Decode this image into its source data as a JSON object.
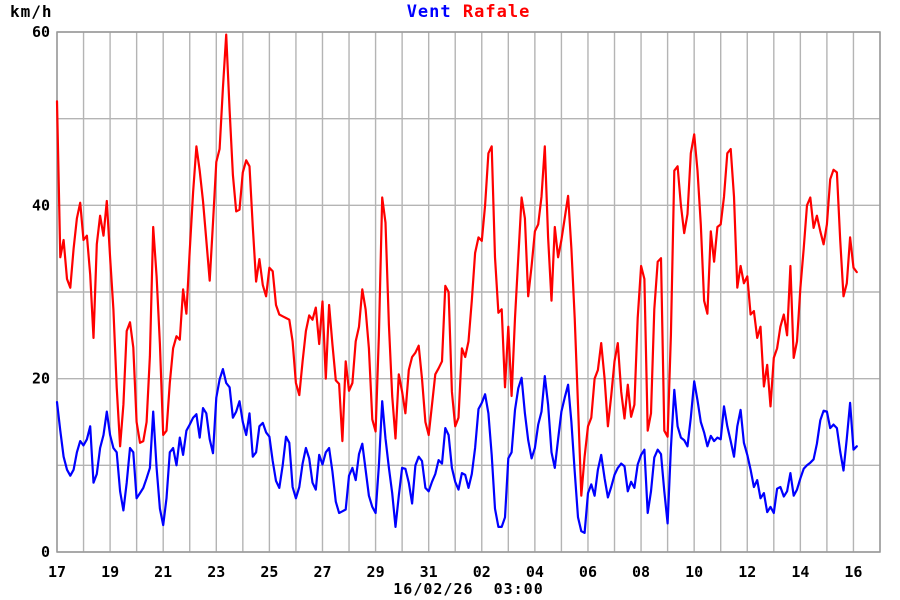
{
  "footer": {
    "timestamp": "16/02/26  03:00"
  },
  "chart_data": {
    "type": "line",
    "title": "Vent Rafale",
    "ylabel": "km/h",
    "xlabel": "",
    "ylim": [
      0,
      60
    ],
    "y_labeled_ticks": [
      0,
      20,
      40,
      60
    ],
    "y_grid_step": 10,
    "grid": true,
    "legend_position": "top-center",
    "x_axis": {
      "start_day": 17,
      "total_days": 31,
      "step_days": 0.125,
      "data_end_day": 47.125,
      "tick_labels": [
        "17",
        "19",
        "21",
        "23",
        "25",
        "27",
        "29",
        "31",
        "02",
        "04",
        "06",
        "08",
        "10",
        "12",
        "14",
        "16"
      ],
      "tick_spacing_days": 2
    },
    "grid_color": "#b4b4b4",
    "border_color": "#999999",
    "series": [
      {
        "name": "Vent",
        "color": "#0000ff",
        "values": [
          17.3,
          14,
          11,
          9.5,
          8.8,
          9.5,
          11.5,
          12.8,
          12.3,
          13,
          14.5,
          8,
          9,
          12,
          13.5,
          16.2,
          13.5,
          12,
          11.5,
          7,
          4.8,
          8,
          12,
          11.5,
          6.2,
          6.8,
          7.4,
          8.5,
          9.7,
          16.2,
          9.7,
          5,
          3.1,
          6.2,
          11.5,
          12,
          10,
          13.2,
          11.2,
          14,
          14.7,
          15.5,
          15.9,
          13.2,
          16.6,
          16,
          13,
          11.4,
          17.8,
          19.9,
          21.1,
          19.5,
          19,
          15.5,
          16.2,
          17.4,
          15,
          13.5,
          16,
          11,
          11.5,
          14.5,
          14.9,
          13.8,
          13.3,
          10.5,
          8.2,
          7.4,
          10,
          13.3,
          12.6,
          7.5,
          6.2,
          7.5,
          10.2,
          12,
          10.8,
          8,
          7.2,
          11.2,
          10.1,
          11.5,
          12,
          9.3,
          5.8,
          4.5,
          4.7,
          4.9,
          8.8,
          9.7,
          8.3,
          11.3,
          12.5,
          9.5,
          6.5,
          5.2,
          4.5,
          10,
          17.4,
          13.1,
          9.7,
          6.8,
          2.9,
          6.5,
          9.7,
          9.6,
          8,
          5.6,
          10,
          11,
          10.5,
          7.4,
          7,
          8.1,
          9,
          10.6,
          10.2,
          14.3,
          13.5,
          9.7,
          8.1,
          7.2,
          9.1,
          8.9,
          7.4,
          9,
          12,
          16.5,
          17.2,
          18.2,
          16,
          11.2,
          5,
          2.9,
          2.9,
          4,
          10.8,
          11.5,
          16.4,
          18.9,
          20.1,
          16,
          12.9,
          10.8,
          12,
          14.7,
          16.2,
          20.3,
          17,
          11.5,
          9.7,
          13,
          16.2,
          17.8,
          19.3,
          15,
          9.3,
          4,
          2.4,
          2.2,
          6.8,
          7.8,
          6.5,
          9.5,
          11.2,
          8.5,
          6.3,
          7.5,
          8.9,
          9.7,
          10.2,
          9.9,
          7,
          8.1,
          7.4,
          10.1,
          11.2,
          11.8,
          4.5,
          7,
          10.9,
          11.8,
          11.3,
          7,
          3.3,
          12,
          18.7,
          14.5,
          13.2,
          12.9,
          12.2,
          15.5,
          19.7,
          17.5,
          15,
          13.8,
          12.2,
          13.4,
          12.8,
          13.2,
          13,
          16.8,
          14.5,
          12.8,
          11,
          14.5,
          16.4,
          12.6,
          11.2,
          9.5,
          7.5,
          8.3,
          6.2,
          6.8,
          4.6,
          5.2,
          4.5,
          7.3,
          7.5,
          6.4,
          7,
          9.1,
          6.5,
          7.2,
          8.5,
          9.6,
          10,
          10.3,
          10.7,
          12.5,
          15.2,
          16.3,
          16.2,
          14.3,
          14.7,
          14.3,
          11.6,
          9.4,
          13.1,
          17.2,
          11.8,
          12.2
        ]
      },
      {
        "name": "Rafale",
        "color": "#ff0000",
        "values": [
          52,
          34,
          36,
          31.5,
          30.5,
          35,
          38.5,
          40.3,
          36,
          36.5,
          32,
          24.7,
          35.5,
          38.8,
          36.5,
          40.5,
          34,
          28,
          19,
          12.2,
          17,
          25.5,
          26.5,
          23.6,
          15,
          12.6,
          12.8,
          15,
          22.6,
          37.5,
          31.8,
          24,
          13.5,
          14,
          19.5,
          23.5,
          24.9,
          24.5,
          30.3,
          27.5,
          34.7,
          41.5,
          46.8,
          44,
          40.5,
          36,
          31.3,
          38,
          45,
          46.5,
          53.5,
          59.7,
          51,
          43.5,
          39.3,
          39.5,
          43.8,
          45.2,
          44.5,
          37.5,
          31.2,
          33.8,
          30.8,
          29.5,
          32.8,
          32.4,
          28.5,
          27.4,
          27.2,
          27,
          26.8,
          24.3,
          19.5,
          18.1,
          22,
          25.5,
          27.3,
          26.8,
          28.2,
          24,
          28.9,
          20,
          28.5,
          24,
          19.8,
          19.4,
          12.8,
          22,
          18.6,
          19.5,
          24.3,
          26,
          30.3,
          28,
          23.5,
          15.3,
          13.9,
          25,
          40.9,
          38,
          26.2,
          18,
          13.1,
          20.5,
          18.5,
          16,
          21,
          22.5,
          23,
          23.8,
          20,
          15,
          13.5,
          17,
          20.5,
          21.2,
          22,
          30.7,
          30,
          18.5,
          14.5,
          15.5,
          23.5,
          22.5,
          24.3,
          29,
          34.5,
          36.3,
          35.9,
          40,
          46,
          46.8,
          34,
          27.6,
          28,
          19,
          26,
          18,
          27,
          34,
          40.9,
          38.5,
          29.5,
          33,
          37,
          37.8,
          41,
          46.8,
          36.3,
          29,
          37.5,
          34,
          36,
          38.5,
          41.1,
          35,
          27,
          17,
          6.5,
          11,
          14.5,
          15.5,
          20,
          21,
          24.1,
          20,
          14.5,
          18,
          22,
          24.1,
          18.5,
          15.4,
          19.3,
          15.6,
          17,
          27,
          33,
          31.5,
          14,
          16,
          28,
          33.5,
          33.9,
          14,
          13.3,
          25,
          44,
          44.5,
          40,
          36.8,
          39,
          46,
          48.2,
          44,
          37.8,
          29,
          27.5,
          37,
          33.5,
          37.5,
          37.8,
          41,
          46,
          46.5,
          41,
          30.5,
          33,
          31,
          31.8,
          27.4,
          27.8,
          24.7,
          26,
          19.1,
          21.6,
          16.8,
          22.4,
          23.5,
          26,
          27.4,
          25,
          33,
          22.4,
          24.3,
          30.5,
          35,
          40,
          40.9,
          37.4,
          38.8,
          37,
          35.5,
          37.8,
          43,
          44.1,
          43.8,
          36,
          29.5,
          31,
          36.3,
          32.8,
          32.3
        ]
      }
    ]
  }
}
